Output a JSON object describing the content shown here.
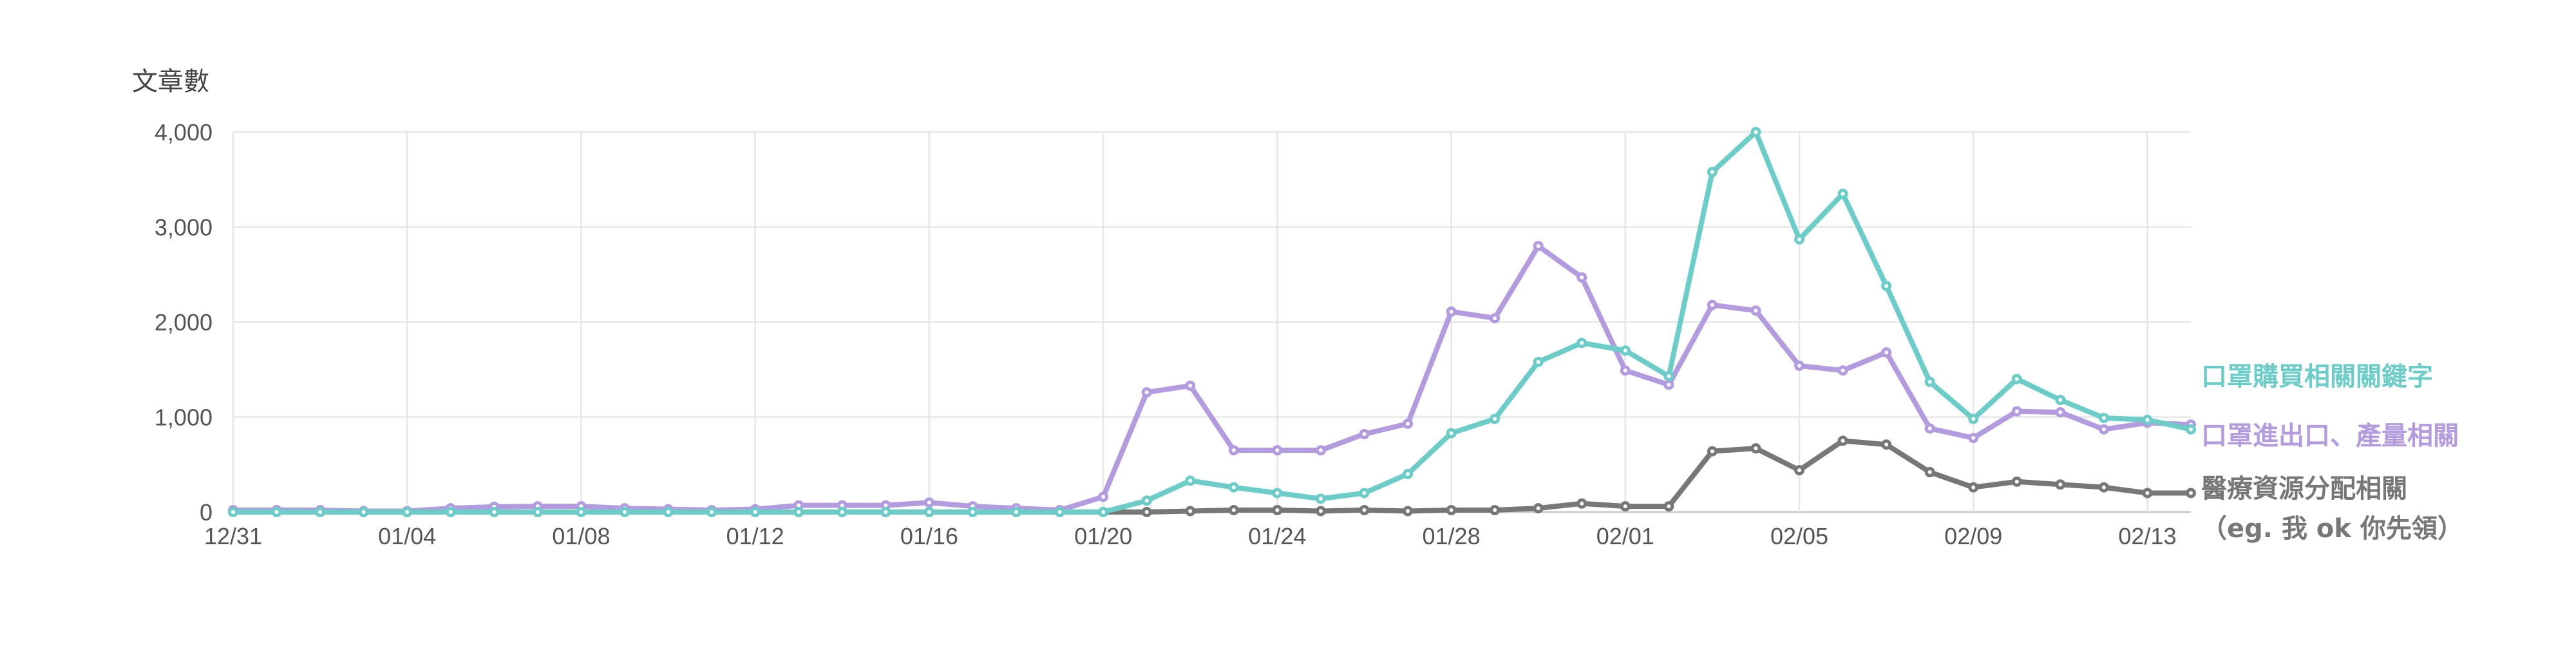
{
  "chart_data": {
    "type": "line",
    "title": "",
    "xlabel": "",
    "ylabel": "文章數",
    "ylim": [
      0,
      4000
    ],
    "yticks": [
      0,
      1000,
      2000,
      3000,
      4000
    ],
    "ytick_labels": [
      "0",
      "1,000",
      "2,000",
      "3,000",
      "4,000"
    ],
    "x": [
      "12/31",
      "01/01",
      "01/02",
      "01/03",
      "01/04",
      "01/05",
      "01/06",
      "01/07",
      "01/08",
      "01/09",
      "01/10",
      "01/11",
      "01/12",
      "01/13",
      "01/14",
      "01/15",
      "01/16",
      "01/17",
      "01/18",
      "01/19",
      "01/20",
      "01/21",
      "01/22",
      "01/23",
      "01/24",
      "01/25",
      "01/26",
      "01/27",
      "01/28",
      "01/29",
      "01/30",
      "01/31",
      "02/01",
      "02/02",
      "02/03",
      "02/04",
      "02/05",
      "02/06",
      "02/07",
      "02/08",
      "02/09",
      "02/10",
      "02/11",
      "02/12",
      "02/13",
      "02/14"
    ],
    "xtick_labels": [
      "12/31",
      "01/04",
      "01/08",
      "01/12",
      "01/16",
      "01/20",
      "01/24",
      "01/28",
      "02/01",
      "02/05",
      "02/09",
      "02/13"
    ],
    "grid": true,
    "legend_placement": "right-inline",
    "series": [
      {
        "name": "口罩購買相關關鍵字",
        "color": "#6ccdc8",
        "values": [
          0,
          0,
          0,
          0,
          0,
          0,
          0,
          0,
          0,
          0,
          0,
          0,
          0,
          0,
          0,
          0,
          0,
          0,
          0,
          0,
          0,
          120,
          330,
          260,
          200,
          140,
          200,
          400,
          830,
          980,
          1580,
          1780,
          1700,
          1430,
          3580,
          4000,
          2870,
          3350,
          2380,
          1370,
          980,
          1400,
          1180,
          990,
          970,
          870
        ]
      },
      {
        "name": "口罩進出口、產量相關",
        "color": "#b39be0",
        "values": [
          20,
          20,
          20,
          10,
          10,
          40,
          55,
          60,
          60,
          40,
          30,
          20,
          30,
          70,
          70,
          70,
          100,
          60,
          40,
          20,
          160,
          1260,
          1330,
          650,
          650,
          650,
          820,
          930,
          2110,
          2040,
          2800,
          2470,
          1490,
          1340,
          2180,
          2120,
          1540,
          1490,
          1680,
          880,
          780,
          1060,
          1050,
          870,
          940,
          920
        ]
      },
      {
        "name": "醫療資源分配相關",
        "name_line2": "（eg. 我 ok 你先領）",
        "color": "#777777",
        "values": [
          0,
          0,
          0,
          0,
          0,
          0,
          0,
          0,
          0,
          0,
          0,
          0,
          0,
          0,
          0,
          0,
          0,
          0,
          0,
          0,
          0,
          0,
          10,
          20,
          20,
          10,
          20,
          10,
          20,
          20,
          40,
          90,
          60,
          60,
          640,
          670,
          440,
          750,
          710,
          420,
          260,
          320,
          290,
          260,
          200,
          200
        ]
      }
    ]
  }
}
